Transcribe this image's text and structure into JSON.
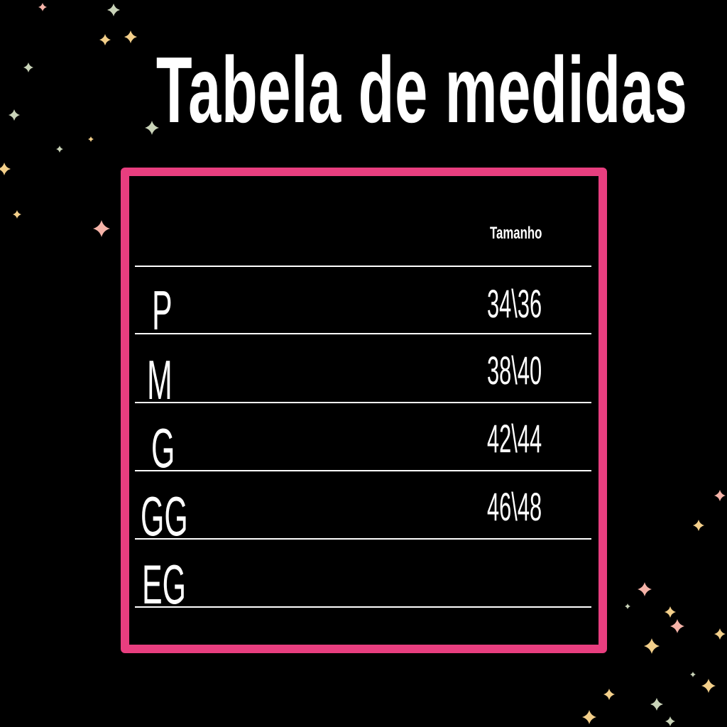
{
  "title": "Tabela de medidas",
  "table": {
    "header": "Tamanho",
    "rows": [
      {
        "size": "P",
        "value": "34\\36"
      },
      {
        "size": "M",
        "value": "38\\40"
      },
      {
        "size": "G",
        "value": "42\\44"
      },
      {
        "size": "GG",
        "value": "46\\48"
      },
      {
        "size": "EG",
        "value": ""
      }
    ]
  },
  "colors": {
    "background": "#000000",
    "border": "#e83e7f",
    "text": "#ffffff",
    "star_gold": "#f3cf8a",
    "star_pink": "#f5b3a8",
    "star_sage": "#c9d3b8"
  },
  "decoration": {
    "icon": "sparkle-star-icon"
  }
}
